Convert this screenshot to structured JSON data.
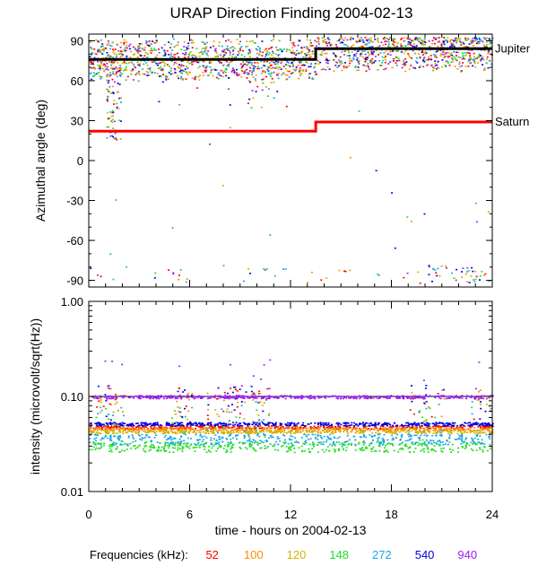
{
  "title": "URAP Direction Finding  2004-02-13",
  "xlabel": "time - hours on 2004-02-13",
  "legend_title": "Frequencies (kHz):",
  "colors": {
    "c52": "#ff0000",
    "c100": "#ff8c00",
    "c120": "#d4b000",
    "c148": "#22dd22",
    "c272": "#1aa7e6",
    "c540": "#0000dd",
    "c940": "#a020f0",
    "jupiter": "#000000",
    "saturn": "#ff0000"
  },
  "frequencies": [
    {
      "label": "52",
      "color": "#ff0000"
    },
    {
      "label": "100",
      "color": "#ff8c00"
    },
    {
      "label": "120",
      "color": "#d4b000"
    },
    {
      "label": "148",
      "color": "#22dd22"
    },
    {
      "label": "272",
      "color": "#1aa7e6"
    },
    {
      "label": "540",
      "color": "#0000dd"
    },
    {
      "label": "940",
      "color": "#a020f0"
    }
  ],
  "chart_data": [
    {
      "type": "scatter",
      "ylabel": "Azimuthal angle (deg)",
      "xlim": [
        0,
        24
      ],
      "ylim": [
        -95,
        95
      ],
      "xticks": [
        "0",
        "6",
        "12",
        "18",
        "24"
      ],
      "yticks": [
        "90",
        "60",
        "30",
        "0",
        "-30",
        "-60",
        "-90"
      ],
      "lines": [
        {
          "name": "Jupiter",
          "color": "#000000",
          "points": [
            [
              0,
              76
            ],
            [
              13.5,
              76
            ],
            [
              13.5,
              84
            ],
            [
              24,
              84
            ]
          ]
        },
        {
          "name": "Saturn",
          "color": "#ff0000",
          "points": [
            [
              0,
              22
            ],
            [
              13.5,
              22
            ],
            [
              13.5,
              29
            ],
            [
              24,
              29
            ]
          ]
        }
      ],
      "scatter_note": "scattered direction-finding points, mostly clustered between 60 and 92 deg"
    },
    {
      "type": "scatter",
      "ylabel": "intensity (microvolt/sqrt(Hz))",
      "xlim": [
        0,
        24
      ],
      "ylim": [
        0.01,
        1.0
      ],
      "yscale": "log",
      "xticks": [
        "0",
        "6",
        "12",
        "18",
        "24"
      ],
      "yticks": [
        "1.00",
        "0.10",
        "0.01"
      ],
      "series": [
        {
          "name": "52",
          "color": "#ff0000",
          "baseline": 0.048
        },
        {
          "name": "100",
          "color": "#ff8c00",
          "baseline": 0.046
        },
        {
          "name": "120",
          "color": "#d4b000",
          "baseline": 0.043
        },
        {
          "name": "148",
          "color": "#22dd22",
          "baseline": 0.03
        },
        {
          "name": "272",
          "color": "#1aa7e6",
          "baseline": 0.036
        },
        {
          "name": "540",
          "color": "#0000dd",
          "baseline": 0.052
        },
        {
          "name": "940",
          "color": "#a020f0",
          "baseline": 0.1
        }
      ]
    }
  ]
}
